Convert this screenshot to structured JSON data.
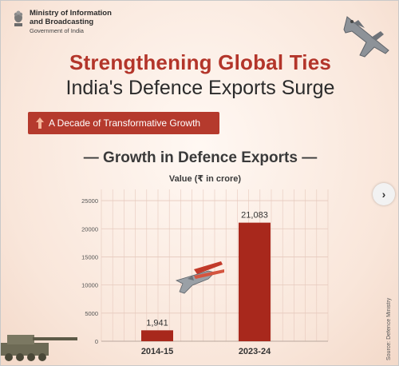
{
  "header": {
    "ministry_name": "Ministry of Information and Broadcasting",
    "government": "Government of India"
  },
  "title_line1": "Strengthening Global Ties",
  "title_line2": "India's Defence Exports Surge",
  "tagline": "A Decade of Transformative Growth",
  "section_title": "— Growth in Defence Exports —",
  "source_note": "Source: Defence Ministry",
  "next_label": "›",
  "colors": {
    "accent_red": "#b53a2d",
    "title_red": "#b3352a",
    "bar": "#a8281c",
    "grid": "#e6c9bd"
  },
  "icons": [
    "national-emblem-icon",
    "fighter-jet-icon",
    "arrow-up-icon",
    "chevron-right-icon",
    "tank-icon"
  ],
  "chart_data": {
    "type": "bar",
    "title": "Value (₹ in crore)",
    "categories": [
      "2014-15",
      "2023-24"
    ],
    "values": [
      1941,
      21083
    ],
    "value_labels": [
      "1,941",
      "21,083"
    ],
    "yticks": [
      "25000",
      "20000",
      "15000",
      "10000",
      "5000",
      "0"
    ],
    "ylim": [
      0,
      27000
    ],
    "grid": true
  }
}
